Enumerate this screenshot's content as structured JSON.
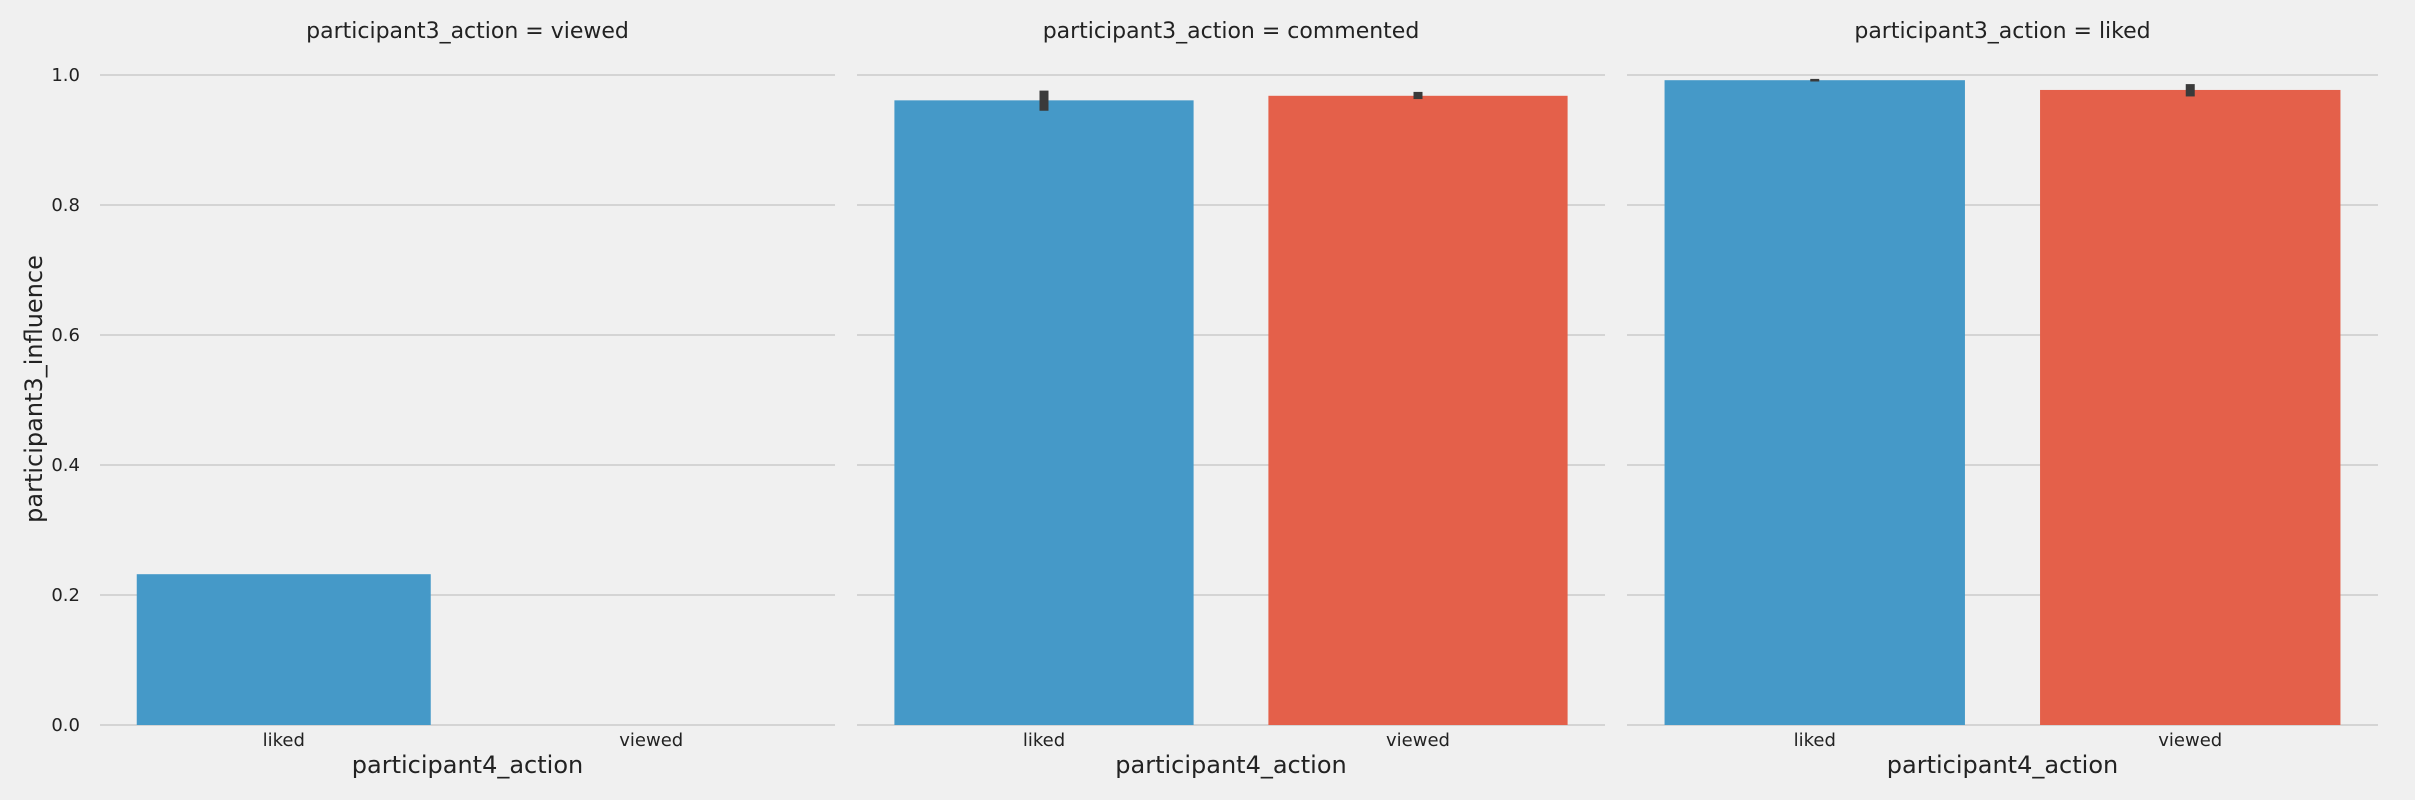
{
  "chart_data": [
    {
      "type": "bar",
      "title": "participant3_action = viewed",
      "xlabel": "participant4_action",
      "ylabel": "participant3_influence",
      "categories": [
        "liked",
        "viewed"
      ],
      "values": [
        0.232,
        null
      ],
      "error_bars": [
        null,
        null
      ],
      "colors": [
        "#4599c8",
        "#e4604a"
      ],
      "ylim": [
        0,
        1.05
      ],
      "yticks": [
        "0.0",
        "0.2",
        "0.4",
        "0.6",
        "0.8",
        "1.0"
      ],
      "grid": true
    },
    {
      "type": "bar",
      "title": "participant3_action = commented",
      "xlabel": "participant4_action",
      "ylabel": "",
      "categories": [
        "liked",
        "viewed"
      ],
      "values": [
        0.961,
        0.968
      ],
      "error_bars": [
        [
          0.945,
          0.976
        ],
        [
          0.963,
          0.974
        ]
      ],
      "colors": [
        "#4599c8",
        "#e4604a"
      ],
      "ylim": [
        0,
        1.05
      ],
      "yticks": [
        "0.0",
        "0.2",
        "0.4",
        "0.6",
        "0.8",
        "1.0"
      ],
      "grid": true
    },
    {
      "type": "bar",
      "title": "participant3_action = liked",
      "xlabel": "participant4_action",
      "ylabel": "",
      "categories": [
        "liked",
        "viewed"
      ],
      "values": [
        0.992,
        0.977
      ],
      "error_bars": [
        [
          0.99,
          0.994
        ],
        [
          0.967,
          0.986
        ]
      ],
      "colors": [
        "#4599c8",
        "#e4604a"
      ],
      "ylim": [
        0,
        1.05
      ],
      "yticks": [
        "0.0",
        "0.2",
        "0.4",
        "0.6",
        "0.8",
        "1.0"
      ],
      "grid": true
    }
  ]
}
